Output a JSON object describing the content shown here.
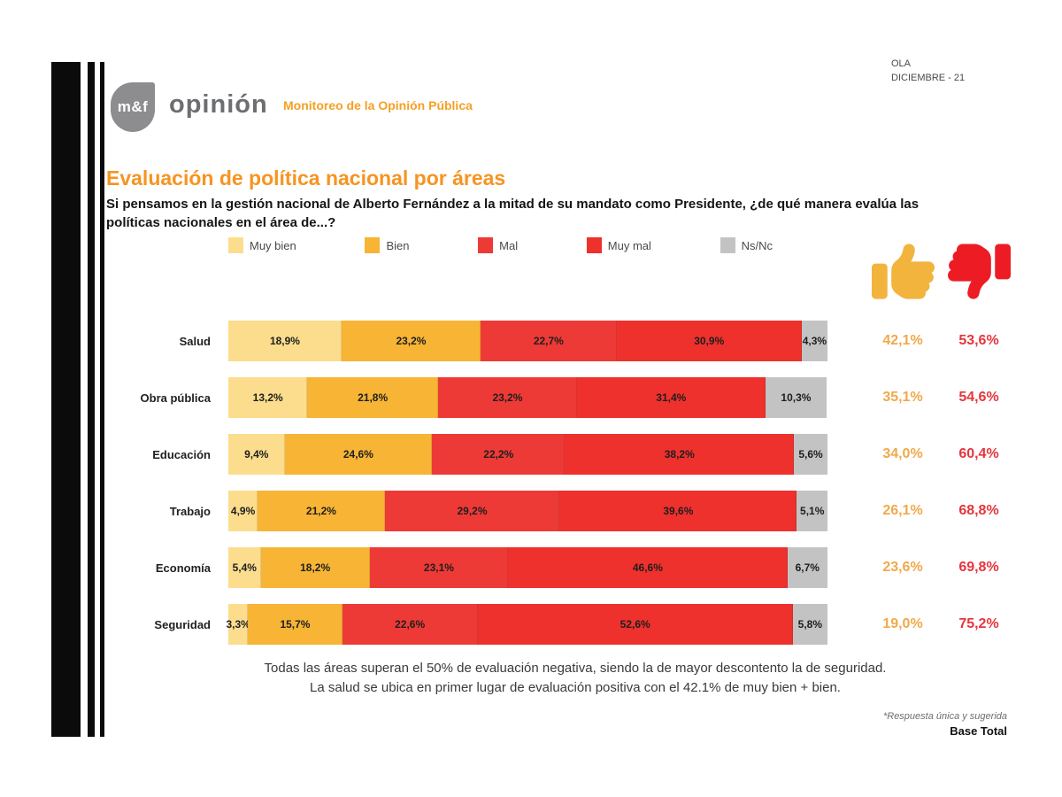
{
  "meta": {
    "wave": [
      "OLA",
      "DICIEMBRE - 21"
    ]
  },
  "brand": {
    "logo_text": "m&f",
    "logo_word": "opinión",
    "program": "Monitoreo de la Opinión Pública"
  },
  "header": {
    "title": "Evaluación de política nacional por áreas",
    "question_line1": "Si pensamos en la gestión nacional de Alberto Fernández a la mitad de su mandato como Presidente, ¿de qué manera evalúa las",
    "question_line2": "políticas nacionales en el área de...?"
  },
  "colors": {
    "title_orange": "#f79421",
    "thumb_up": "#f2b43d",
    "thumb_down": "#ed1c24",
    "positive_text": "#f0a94b",
    "negative_text": "#e5353c"
  },
  "chart_data": {
    "type": "bar",
    "orientation": "horizontal",
    "stacked": true,
    "unit": "%",
    "decimal_separator": ",",
    "xlim": [
      0,
      100
    ],
    "legend_position": "top",
    "value_labels": "inside",
    "categories": [
      "Salud",
      "Obra pública",
      "Educación",
      "Trabajo",
      "Economía",
      "Seguridad"
    ],
    "series": [
      {
        "name": "Muy bien",
        "color": "#fbdd8d",
        "values": [
          18.9,
          13.2,
          9.4,
          4.9,
          5.4,
          3.3
        ]
      },
      {
        "name": "Bien",
        "color": "#f7b435",
        "values": [
          23.2,
          21.8,
          24.6,
          21.2,
          18.2,
          15.7
        ]
      },
      {
        "name": "Mal",
        "color": "#ee3a36",
        "values": [
          22.7,
          23.2,
          22.2,
          29.2,
          23.1,
          22.6
        ]
      },
      {
        "name": "Muy mal",
        "color": "#ee312d",
        "values": [
          30.9,
          31.4,
          38.2,
          39.6,
          46.6,
          52.6
        ]
      },
      {
        "name": "Ns/Nc",
        "color": "#c3c3c3",
        "values": [
          4.3,
          10.3,
          5.6,
          5.1,
          6.7,
          5.8
        ]
      }
    ],
    "summary": {
      "positive": [
        42.1,
        35.1,
        34.0,
        26.1,
        23.6,
        19.0
      ],
      "negative": [
        53.6,
        54.6,
        60.4,
        68.8,
        69.8,
        75.2
      ]
    }
  },
  "notes": {
    "line1": "Todas las áreas superan el 50% de evaluación negativa, siendo la de mayor descontento la de seguridad.",
    "line2": "La salud se ubica en primer lugar de evaluación positiva con el 42.1% de muy bien + bien."
  },
  "footer": {
    "note": "*Respuesta única y sugerida",
    "base": "Base Total"
  }
}
